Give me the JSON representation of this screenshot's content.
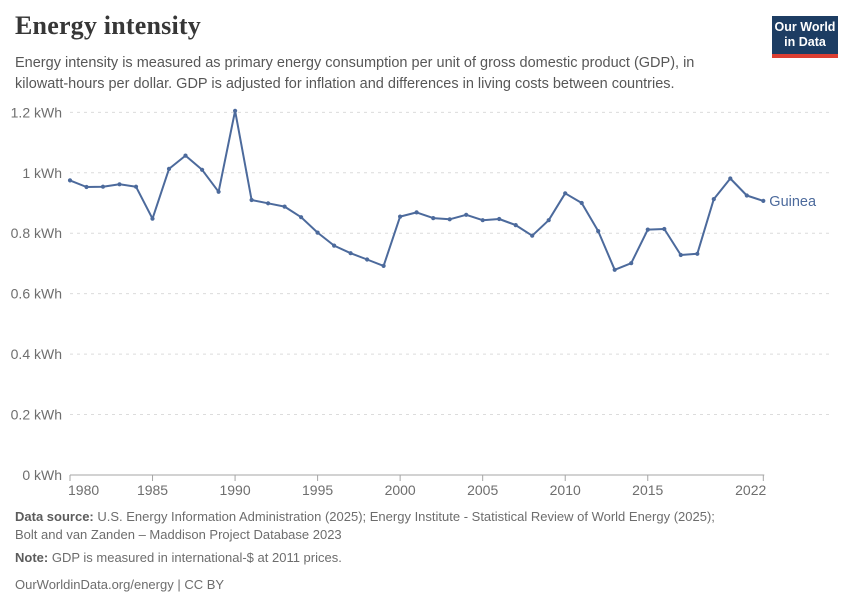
{
  "header": {
    "title": "Energy intensity",
    "subtitle": "Energy intensity is measured as primary energy consumption per unit of gross domestic product (GDP), in kilowatt-hours per dollar. GDP is adjusted for inflation and differences in living costs between countries.",
    "logo": {
      "line1": "Our World",
      "line2": "in Data",
      "bg_color": "#1d3d63",
      "accent_color": "#dc3e32"
    }
  },
  "chart_data": {
    "type": "line",
    "title": "Energy intensity",
    "unit": "kWh",
    "xlim": [
      1980,
      2022
    ],
    "ylim": [
      0,
      1.26
    ],
    "grid": "horizontal-dashed",
    "legend_position": "end-of-line-label",
    "y_ticks": [
      0,
      0.2,
      0.4,
      0.6,
      0.8,
      1.0,
      1.2
    ],
    "y_tick_labels": [
      "0 kWh",
      "0.2 kWh",
      "0.4 kWh",
      "0.6 kWh",
      "0.8 kWh",
      "1 kWh",
      "1.2 kWh"
    ],
    "x_ticks": [
      1980,
      1985,
      1990,
      1995,
      2000,
      2005,
      2010,
      2015,
      2022
    ],
    "x_tick_labels": [
      "1980",
      "1985",
      "1990",
      "1995",
      "2000",
      "2005",
      "2010",
      "2015",
      "2022"
    ],
    "series": [
      {
        "name": "Guinea",
        "color": "#4c6a9c",
        "x": [
          1980,
          1981,
          1982,
          1983,
          1984,
          1985,
          1986,
          1987,
          1988,
          1989,
          1990,
          1991,
          1992,
          1993,
          1994,
          1995,
          1996,
          1997,
          1998,
          1999,
          2000,
          2001,
          2002,
          2003,
          2004,
          2005,
          2006,
          2007,
          2008,
          2009,
          2010,
          2011,
          2012,
          2013,
          2014,
          2015,
          2016,
          2017,
          2018,
          2019,
          2020,
          2021,
          2022
        ],
        "values": [
          0.975,
          0.953,
          0.954,
          0.962,
          0.954,
          0.848,
          1.013,
          1.057,
          1.01,
          0.937,
          1.205,
          0.91,
          0.899,
          0.888,
          0.853,
          0.802,
          0.759,
          0.734,
          0.713,
          0.692,
          0.855,
          0.869,
          0.85,
          0.846,
          0.861,
          0.843,
          0.847,
          0.827,
          0.792,
          0.843,
          0.932,
          0.9,
          0.807,
          0.679,
          0.701,
          0.812,
          0.814,
          0.728,
          0.732,
          0.913,
          0.981,
          0.925,
          0.907
        ]
      }
    ],
    "end_label": "Guinea",
    "colors": {
      "grid": "#dcdcdc",
      "axis": "#a5a5a5",
      "tick_text": "#6e6e6e"
    }
  },
  "footer": {
    "data_source_label": "Data source:",
    "data_source": " U.S. Energy Information Administration (2025); Energy Institute - Statistical Review of World Energy (2025); Bolt and van Zanden – Maddison Project Database 2023",
    "note_label": "Note:",
    "note": " GDP is measured in international-$ at 2011 prices.",
    "link": "OurWorldinData.org/energy | CC BY"
  }
}
